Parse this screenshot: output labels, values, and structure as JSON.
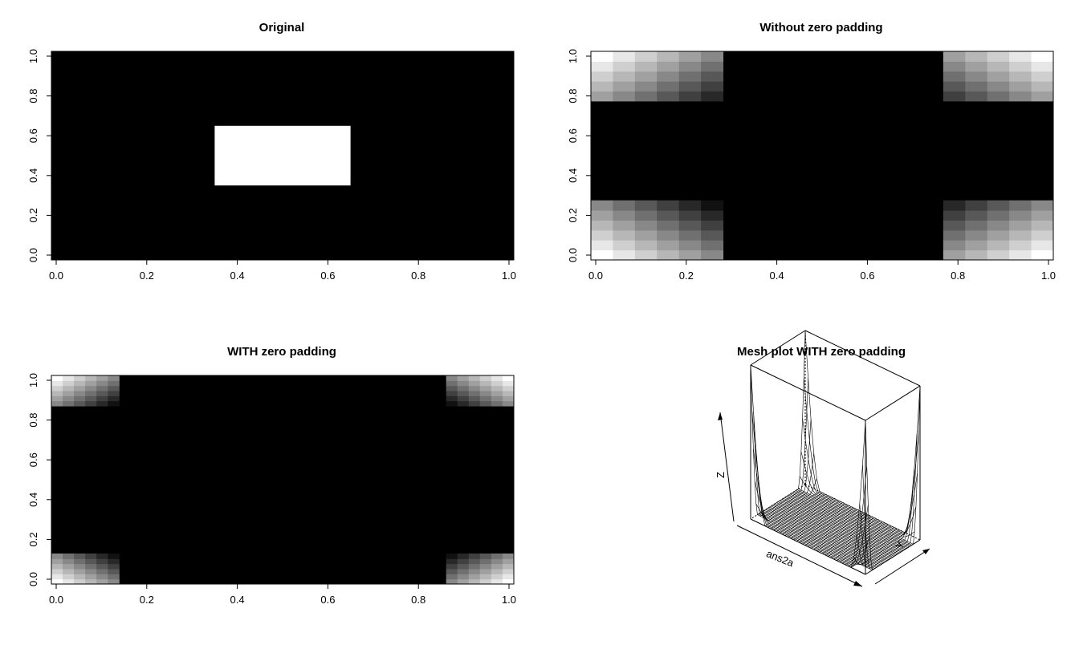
{
  "chart_data": [
    {
      "type": "heatmap",
      "title": "Original",
      "xlabel": "",
      "ylabel": "",
      "x_ticks": [
        "0.0",
        "0.2",
        "0.4",
        "0.6",
        "0.8",
        "1.0"
      ],
      "y_ticks": [
        "0.0",
        "0.2",
        "0.4",
        "0.6",
        "0.8",
        "1.0"
      ],
      "xlim": [
        0,
        1
      ],
      "ylim": [
        0,
        1
      ],
      "colormap": "grayscale",
      "regions": [
        {
          "x": [
            0.35,
            0.65
          ],
          "y": [
            0.35,
            0.65
          ],
          "value": 1
        }
      ],
      "background_value": 0
    },
    {
      "type": "heatmap",
      "title": "Without zero padding",
      "xlabel": "",
      "ylabel": "",
      "x_ticks": [
        "0.0",
        "0.2",
        "0.4",
        "0.6",
        "0.8",
        "1.0"
      ],
      "y_ticks": [
        "0.0",
        "0.2",
        "0.4",
        "0.6",
        "0.8",
        "1.0"
      ],
      "xlim": [
        0,
        1
      ],
      "ylim": [
        0,
        1
      ],
      "colormap": "grayscale",
      "grid_n": 21,
      "blocks": [
        {
          "xi": [
            0,
            5
          ],
          "yi": [
            0,
            5
          ],
          "peak": [
            0,
            0
          ],
          "falloff": 0.17
        },
        {
          "xi": [
            16,
            20
          ],
          "yi": [
            0,
            5
          ],
          "peak": [
            20,
            0
          ],
          "falloff": 0.17
        },
        {
          "xi": [
            0,
            5
          ],
          "yi": [
            16,
            20
          ],
          "peak": [
            0,
            20
          ],
          "falloff": 0.17
        },
        {
          "xi": [
            16,
            20
          ],
          "yi": [
            16,
            20
          ],
          "peak": [
            20,
            20
          ],
          "falloff": 0.17
        }
      ]
    },
    {
      "type": "heatmap",
      "title": "WITH zero padding",
      "xlabel": "",
      "ylabel": "",
      "x_ticks": [
        "0.0",
        "0.2",
        "0.4",
        "0.6",
        "0.8",
        "1.0"
      ],
      "y_ticks": [
        "0.0",
        "0.2",
        "0.4",
        "0.6",
        "0.8",
        "1.0"
      ],
      "xlim": [
        0,
        1
      ],
      "ylim": [
        0,
        1
      ],
      "colormap": "grayscale",
      "grid_n": 41,
      "blocks": [
        {
          "xi": [
            0,
            5
          ],
          "yi": [
            0,
            5
          ],
          "peak": [
            0,
            0
          ],
          "falloff": 0.17
        },
        {
          "xi": [
            35,
            40
          ],
          "yi": [
            0,
            5
          ],
          "peak": [
            40,
            0
          ],
          "falloff": 0.17
        },
        {
          "xi": [
            0,
            5
          ],
          "yi": [
            35,
            40
          ],
          "peak": [
            0,
            40
          ],
          "falloff": 0.17
        },
        {
          "xi": [
            35,
            40
          ],
          "yi": [
            35,
            40
          ],
          "peak": [
            40,
            40
          ],
          "falloff": 0.17
        }
      ]
    },
    {
      "type": "surface",
      "title": "Mesh plot WITH zero padding",
      "xlabel": "ans2a",
      "ylabel": "Y",
      "zlabel": "Z",
      "grid_n": 41,
      "surface": "corner peaks (2D FFT magnitude)"
    }
  ]
}
